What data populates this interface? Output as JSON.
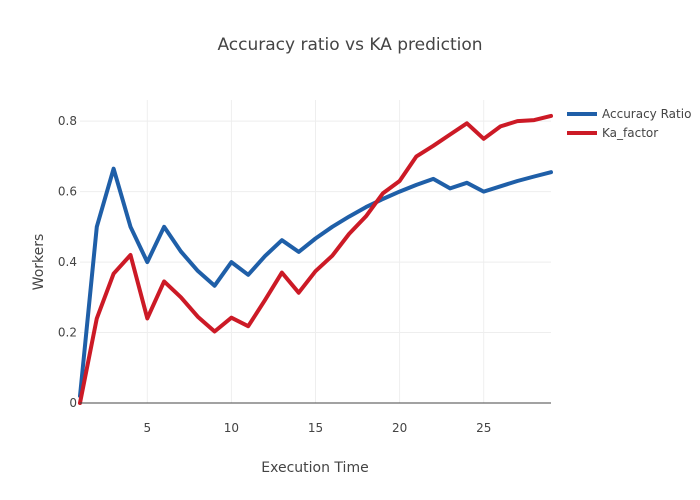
{
  "chart_data": {
    "type": "line",
    "title": "Accuracy ratio vs KA prediction",
    "xlabel": "Execution Time",
    "ylabel": "Workers",
    "xlim": [
      1,
      29
    ],
    "ylim": [
      0,
      0.86
    ],
    "x_ticks": [
      5,
      10,
      15,
      20,
      25
    ],
    "x_tick_labels": [
      "5",
      "10",
      "15",
      "20",
      "25"
    ],
    "y_ticks": [
      0,
      0.2,
      0.4,
      0.6,
      0.8
    ],
    "y_tick_labels": [
      "0",
      "0.2",
      "0.4",
      "0.6",
      "0.8"
    ],
    "grid": true,
    "legend_position": "top-right",
    "x": [
      1,
      2,
      3,
      4,
      5,
      6,
      7,
      8,
      9,
      10,
      11,
      12,
      13,
      14,
      15,
      16,
      17,
      18,
      19,
      20,
      21,
      22,
      23,
      24,
      25,
      26,
      27,
      28,
      29
    ],
    "series": [
      {
        "name": "Accuracy Ratio",
        "color": "#1f5fa8",
        "values": [
          0.02,
          0.5,
          0.665,
          0.5,
          0.4,
          0.5,
          0.43,
          0.375,
          0.333,
          0.4,
          0.364,
          0.417,
          0.462,
          0.429,
          0.467,
          0.5,
          0.529,
          0.556,
          0.579,
          0.6,
          0.619,
          0.636,
          0.609,
          0.625,
          0.6,
          0.615,
          0.63,
          0.643,
          0.655
        ]
      },
      {
        "name": "Ka_factor",
        "color": "#cc1a26",
        "values": [
          0.0,
          0.24,
          0.367,
          0.42,
          0.24,
          0.345,
          0.3,
          0.245,
          0.203,
          0.242,
          0.218,
          0.292,
          0.37,
          0.313,
          0.374,
          0.418,
          0.48,
          0.53,
          0.595,
          0.63,
          0.7,
          0.73,
          0.762,
          0.794,
          0.75,
          0.785,
          0.8,
          0.803,
          0.815
        ]
      }
    ]
  }
}
